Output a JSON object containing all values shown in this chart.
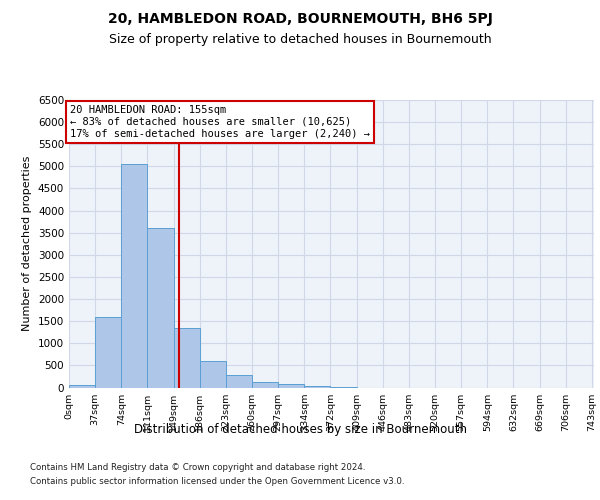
{
  "title": "20, HAMBLEDON ROAD, BOURNEMOUTH, BH6 5PJ",
  "subtitle": "Size of property relative to detached houses in Bournemouth",
  "xlabel": "Distribution of detached houses by size in Bournemouth",
  "ylabel": "Number of detached properties",
  "bin_labels": [
    "0sqm",
    "37sqm",
    "74sqm",
    "111sqm",
    "149sqm",
    "186sqm",
    "223sqm",
    "260sqm",
    "297sqm",
    "334sqm",
    "372sqm",
    "409sqm",
    "446sqm",
    "483sqm",
    "520sqm",
    "557sqm",
    "594sqm",
    "632sqm",
    "669sqm",
    "706sqm",
    "743sqm"
  ],
  "bar_heights": [
    50,
    1600,
    5050,
    3600,
    1350,
    600,
    280,
    130,
    80,
    30,
    10,
    0,
    0,
    0,
    0,
    0,
    0,
    0,
    0,
    0
  ],
  "bar_color": "#aec6e8",
  "bar_edge_color": "#5a9fd4",
  "grid_color": "#d0d8e8",
  "background_color": "#eef2f9",
  "property_line_x": 155,
  "property_line_color": "#cc0000",
  "annotation_text": "20 HAMBLEDON ROAD: 155sqm\n← 83% of detached houses are smaller (10,625)\n17% of semi-detached houses are larger (2,240) →",
  "annotation_box_color": "#cc0000",
  "ylim": [
    0,
    6500
  ],
  "yticks": [
    0,
    500,
    1000,
    1500,
    2000,
    2500,
    3000,
    3500,
    4000,
    4500,
    5000,
    5500,
    6000,
    6500
  ],
  "footer_line1": "Contains HM Land Registry data © Crown copyright and database right 2024.",
  "footer_line2": "Contains public sector information licensed under the Open Government Licence v3.0.",
  "title_fontsize": 10,
  "subtitle_fontsize": 9
}
